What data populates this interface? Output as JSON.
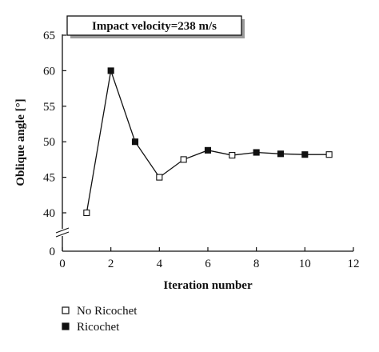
{
  "chart_data": {
    "type": "line",
    "annotation": "Impact velocity=238 m/s",
    "xlabel": "Iteration number",
    "ylabel": "Oblique angle [°]",
    "xlim": [
      0,
      12
    ],
    "x_ticks": [
      0,
      2,
      4,
      6,
      8,
      10,
      12
    ],
    "y_ticks": [
      0,
      40,
      45,
      50,
      55,
      60,
      65
    ],
    "y_axis_break": "between 0 and 40",
    "grid": false,
    "legend_placement": "bottom-left",
    "series": [
      {
        "points": [
          {
            "x": 1,
            "y": 40.0,
            "marker": "No Ricochet"
          },
          {
            "x": 2,
            "y": 60.0,
            "marker": "Ricochet"
          },
          {
            "x": 3,
            "y": 50.0,
            "marker": "Ricochet"
          },
          {
            "x": 4,
            "y": 45.0,
            "marker": "No Ricochet"
          },
          {
            "x": 5,
            "y": 47.5,
            "marker": "No Ricochet"
          },
          {
            "x": 6,
            "y": 48.8,
            "marker": "Ricochet"
          },
          {
            "x": 7,
            "y": 48.1,
            "marker": "No Ricochet"
          },
          {
            "x": 8,
            "y": 48.5,
            "marker": "Ricochet"
          },
          {
            "x": 9,
            "y": 48.3,
            "marker": "Ricochet"
          },
          {
            "x": 10,
            "y": 48.2,
            "marker": "Ricochet"
          },
          {
            "x": 11,
            "y": 48.2,
            "marker": "No Ricochet"
          }
        ]
      }
    ],
    "legend": [
      {
        "label": "No Ricochet",
        "marker": "open-square"
      },
      {
        "label": "Ricochet",
        "marker": "filled-square"
      }
    ]
  }
}
